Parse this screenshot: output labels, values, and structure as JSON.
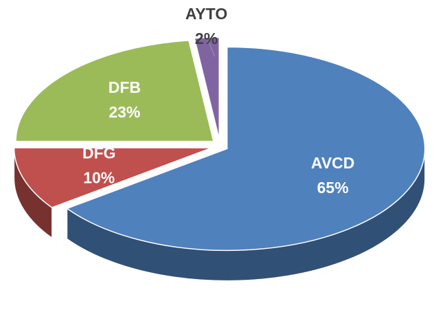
{
  "chart_data": {
    "type": "pie3d",
    "categories": [
      "AVCD",
      "DFG",
      "DFB",
      "AYTO"
    ],
    "values": [
      65,
      10,
      23,
      2
    ],
    "value_labels": [
      "65%",
      "10%",
      "23%",
      "2%"
    ],
    "colors": [
      "#4f81bd",
      "#c0504d",
      "#9bbb59",
      "#8064a2"
    ]
  }
}
